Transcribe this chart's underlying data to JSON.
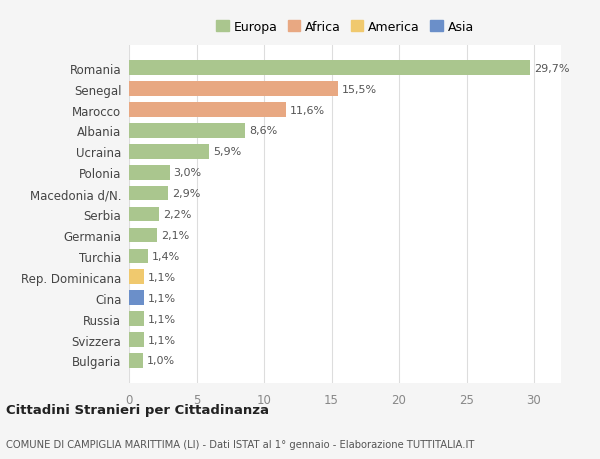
{
  "countries": [
    "Romania",
    "Senegal",
    "Marocco",
    "Albania",
    "Ucraina",
    "Polonia",
    "Macedonia d/N.",
    "Serbia",
    "Germania",
    "Turchia",
    "Rep. Dominicana",
    "Cina",
    "Russia",
    "Svizzera",
    "Bulgaria"
  ],
  "values": [
    29.7,
    15.5,
    11.6,
    8.6,
    5.9,
    3.0,
    2.9,
    2.2,
    2.1,
    1.4,
    1.1,
    1.1,
    1.1,
    1.1,
    1.0
  ],
  "labels": [
    "29,7%",
    "15,5%",
    "11,6%",
    "8,6%",
    "5,9%",
    "3,0%",
    "2,9%",
    "2,2%",
    "2,1%",
    "1,4%",
    "1,1%",
    "1,1%",
    "1,1%",
    "1,1%",
    "1,0%"
  ],
  "continents": [
    "Europa",
    "Africa",
    "Africa",
    "Europa",
    "Europa",
    "Europa",
    "Europa",
    "Europa",
    "Europa",
    "Europa",
    "America",
    "Asia",
    "Europa",
    "Europa",
    "Europa"
  ],
  "continent_colors": {
    "Europa": "#aac68e",
    "Africa": "#e8a882",
    "America": "#f0c96e",
    "Asia": "#6b8fc9"
  },
  "legend_order": [
    "Europa",
    "Africa",
    "America",
    "Asia"
  ],
  "title": "Cittadini Stranieri per Cittadinanza",
  "subtitle": "COMUNE DI CAMPIGLIA MARITTIMA (LI) - Dati ISTAT al 1° gennaio - Elaborazione TUTTITALIA.IT",
  "xlim": [
    0,
    32
  ],
  "xticks": [
    0,
    5,
    10,
    15,
    20,
    25,
    30
  ],
  "background_color": "#f5f5f5",
  "plot_background": "#ffffff",
  "grid_color": "#dddddd",
  "label_fontsize": 8.0,
  "bar_height": 0.7
}
